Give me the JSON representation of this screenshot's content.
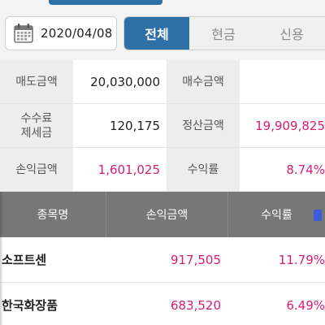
{
  "date_picker": {
    "value": "2020/04/08",
    "icon": "calendar-icon"
  },
  "tabs": [
    {
      "label": "전체",
      "active": true
    },
    {
      "label": "현금",
      "active": false
    },
    {
      "label": "신용",
      "active": false
    }
  ],
  "summary": {
    "sell_amount_label": "매도금액",
    "sell_amount_value": "20,030,000",
    "buy_amount_label": "매수금액",
    "buy_amount_value": "",
    "fee_tax_label_line1": "수수료",
    "fee_tax_label_line2": "제세금",
    "fee_tax_value": "120,175",
    "settlement_label": "정산금액",
    "settlement_value": "19,909,825",
    "pnl_label": "손익금액",
    "pnl_value": "1,601,025",
    "return_label": "수익률",
    "return_value": "8.74%"
  },
  "table": {
    "columns": [
      "종목명",
      "손익금액",
      "수익률"
    ],
    "rows": [
      {
        "name": "소프트센",
        "pnl": "917,505",
        "rate": "11.79%"
      },
      {
        "name": "한국화장품",
        "pnl": "683,520",
        "rate": "6.49%"
      }
    ]
  },
  "colors": {
    "accent": "#2f6fa8",
    "profit": "#d81b73",
    "header_bg": "#777777"
  }
}
